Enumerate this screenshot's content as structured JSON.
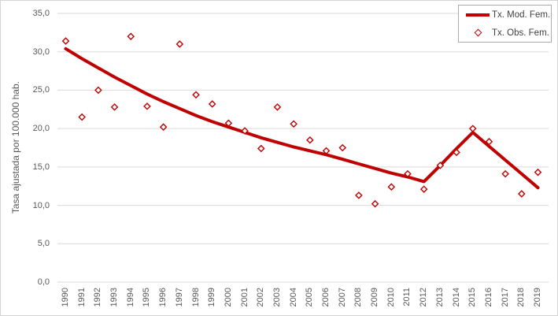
{
  "chart_data": {
    "type": "line",
    "title": "",
    "xlabel": "",
    "ylabel": "Tasa ajustada por 100.000 hab.",
    "ylim": [
      0,
      35
    ],
    "grid": "horizontal-only",
    "legend_position": "top-right",
    "x": [
      "1990",
      "1991",
      "1992",
      "1993",
      "1994",
      "1995",
      "1996",
      "1997",
      "1998",
      "1999",
      "2000",
      "2001",
      "2002",
      "2003",
      "2004",
      "2005",
      "2006",
      "2007",
      "2008",
      "2009",
      "2010",
      "2011",
      "2012",
      "2013",
      "2014",
      "2015",
      "2016",
      "2017",
      "2018",
      "2019"
    ],
    "y_ticks": {
      "values": [
        0,
        5,
        10,
        15,
        20,
        25,
        30,
        35
      ],
      "labels": [
        "0,0",
        "5,0",
        "10,0",
        "15,0",
        "20,0",
        "25,0",
        "30,0",
        "35,0"
      ]
    },
    "series": [
      {
        "name": "Tx. Mod. Fem.",
        "type": "line",
        "marker": "none",
        "color": "#C00000",
        "values": [
          30.4,
          29.1,
          27.9,
          26.7,
          25.6,
          24.5,
          23.5,
          22.6,
          21.7,
          20.9,
          20.2,
          19.5,
          18.8,
          18.2,
          17.6,
          17.1,
          16.6,
          16.0,
          15.4,
          14.8,
          14.2,
          13.7,
          13.1,
          15.2,
          17.4,
          19.5,
          17.7,
          15.9,
          14.1,
          12.3
        ]
      },
      {
        "name": "Tx. Obs. Fem.",
        "type": "scatter",
        "marker": "open-diamond",
        "color": "#C00000",
        "values": [
          31.4,
          21.5,
          25.0,
          22.8,
          32.0,
          22.9,
          20.2,
          31.0,
          24.4,
          23.2,
          20.7,
          19.7,
          17.4,
          22.8,
          20.6,
          18.5,
          17.1,
          17.5,
          11.3,
          10.2,
          12.4,
          14.1,
          12.1,
          15.2,
          16.9,
          20.0,
          18.3,
          14.1,
          11.5,
          14.3
        ]
      }
    ],
    "colors": {
      "series_red": "#C00000",
      "gridline": "#D9D9D9",
      "axis_text": "#595959",
      "legend_text": "#404040",
      "chart_border": "#D4D4D4"
    }
  }
}
